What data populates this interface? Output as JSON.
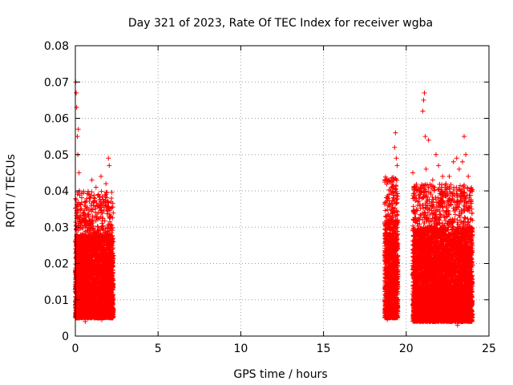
{
  "chart_data": {
    "type": "scatter",
    "title": "Day 321 of 2023, Rate Of TEC Index for receiver wgba",
    "xlabel": "GPS time / hours",
    "ylabel": "ROTI / TECUs",
    "xlim": [
      0,
      25
    ],
    "ylim": [
      0,
      0.08
    ],
    "x_ticks": [
      0,
      5,
      10,
      15,
      20,
      25
    ],
    "x_tick_labels": [
      "0",
      "5",
      "10",
      "15",
      "20",
      "25"
    ],
    "y_ticks": [
      0,
      0.01,
      0.02,
      0.03,
      0.04,
      0.05,
      0.06,
      0.07,
      0.08
    ],
    "y_tick_labels": [
      "0",
      "0.01",
      "0.02",
      "0.03",
      "0.04",
      "0.05",
      "0.06",
      "0.07",
      "0.08"
    ],
    "grid": true,
    "marker": "+",
    "color": "#ff0000",
    "series": [
      {
        "points": [
          [
            0.02,
            0.07
          ],
          [
            0.05,
            0.067
          ],
          [
            0.08,
            0.063
          ],
          [
            0.12,
            0.055
          ],
          [
            0.15,
            0.05
          ],
          [
            0.18,
            0.057
          ],
          [
            0.22,
            0.045
          ],
          [
            0.25,
            0.04
          ],
          [
            0.3,
            0.035
          ],
          [
            0.4,
            0.028
          ],
          [
            0.55,
            0.032
          ],
          [
            0.7,
            0.029
          ],
          [
            0.85,
            0.038
          ],
          [
            1.0,
            0.043
          ],
          [
            1.1,
            0.036
          ],
          [
            1.25,
            0.041
          ],
          [
            1.4,
            0.039
          ],
          [
            1.55,
            0.044
          ],
          [
            1.7,
            0.037
          ],
          [
            1.85,
            0.042
          ],
          [
            2.0,
            0.049
          ],
          [
            2.05,
            0.047
          ],
          [
            2.15,
            0.033
          ],
          [
            2.2,
            0.027
          ],
          [
            2.25,
            0.022
          ],
          [
            0.1,
            0.005
          ],
          [
            0.6,
            0.004
          ],
          [
            1.2,
            0.005
          ],
          [
            1.6,
            0.0045
          ],
          [
            2.1,
            0.006
          ],
          [
            18.75,
            0.033
          ],
          [
            18.9,
            0.036
          ],
          [
            19.05,
            0.04
          ],
          [
            19.2,
            0.043
          ],
          [
            19.3,
            0.052
          ],
          [
            19.35,
            0.056
          ],
          [
            19.4,
            0.049
          ],
          [
            19.45,
            0.047
          ],
          [
            19.25,
            0.038
          ],
          [
            19.0,
            0.005
          ],
          [
            18.85,
            0.0045
          ],
          [
            19.35,
            0.006
          ],
          [
            20.4,
            0.045
          ],
          [
            20.55,
            0.041
          ],
          [
            20.7,
            0.036
          ],
          [
            20.85,
            0.039
          ],
          [
            21.0,
            0.062
          ],
          [
            21.05,
            0.065
          ],
          [
            21.1,
            0.067
          ],
          [
            21.15,
            0.055
          ],
          [
            21.2,
            0.046
          ],
          [
            21.35,
            0.054
          ],
          [
            21.6,
            0.043
          ],
          [
            21.8,
            0.05
          ],
          [
            21.95,
            0.047
          ],
          [
            22.2,
            0.044
          ],
          [
            22.4,
            0.042
          ],
          [
            22.6,
            0.044
          ],
          [
            22.85,
            0.048
          ],
          [
            23.05,
            0.049
          ],
          [
            23.2,
            0.046
          ],
          [
            23.4,
            0.048
          ],
          [
            23.5,
            0.055
          ],
          [
            23.6,
            0.05
          ],
          [
            23.75,
            0.044
          ],
          [
            23.9,
            0.04
          ],
          [
            23.95,
            0.035
          ],
          [
            20.6,
            0.005
          ],
          [
            21.4,
            0.006
          ],
          [
            22.1,
            0.0045
          ],
          [
            22.75,
            0.004
          ],
          [
            23.1,
            0.003
          ],
          [
            23.7,
            0.005
          ],
          [
            24.0,
            0.006
          ]
        ]
      }
    ],
    "dense_bands": [
      {
        "x_start": 0.0,
        "x_end": 2.3,
        "y_min": 0.005,
        "y_max": 0.028
      },
      {
        "x_start": 18.7,
        "x_end": 19.5,
        "y_min": 0.005,
        "y_max": 0.032
      },
      {
        "x_start": 20.4,
        "x_end": 24.0,
        "y_min": 0.004,
        "y_max": 0.03
      }
    ]
  }
}
